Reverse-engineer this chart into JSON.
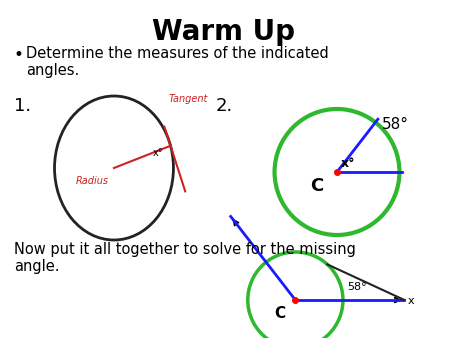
{
  "title": "Warm Up",
  "bullet_text": "Determine the measures of the indicated\nangles.",
  "bottom_text": "Now put it all together to solve for the missing\nangle.",
  "label1": "1.",
  "label2": "2.",
  "tangent_label": "Tangent",
  "radius_label": "Radius",
  "x_label1": "x°",
  "x_label2": "x°",
  "C_label2": "C",
  "C_label3": "C",
  "angle_58_2": "58°",
  "angle_58_3": "58°",
  "x_label3": "x",
  "background": "#ffffff",
  "circle1_color": "#222222",
  "circle2_color": "#2db82d",
  "circle3_color": "#2db82d",
  "radius_color": "#cc2222",
  "tangent_color": "#cc2222",
  "line_color2": "#1a1aff",
  "line_color3": "#1a1aff",
  "black_line3": "#222222"
}
